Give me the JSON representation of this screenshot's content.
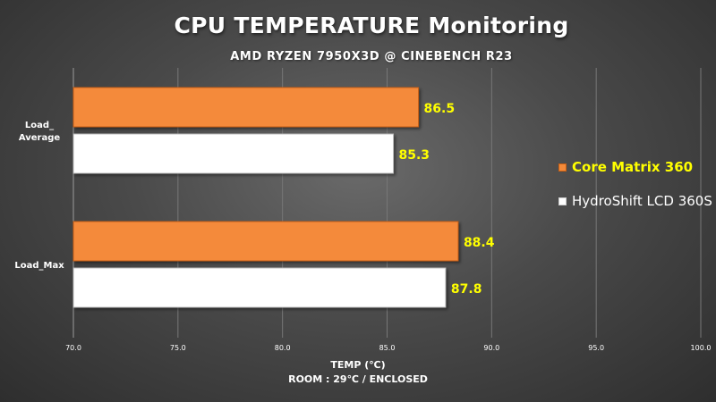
{
  "chart_data": {
    "type": "bar",
    "orientation": "horizontal",
    "title": "CPU TEMPERATURE Monitoring",
    "subtitle": "AMD RYZEN 7950X3D @ CINEBENCH R23",
    "xlabel": "TEMP (℃)",
    "note": "ROOM : 29℃ / ENCLOSED",
    "categories": [
      "Load_ Average",
      "Load_Max"
    ],
    "series": [
      {
        "name": "Core Matrix 360",
        "values": [
          86.5,
          88.4
        ],
        "color": "#f48a3a"
      },
      {
        "name": "HydroShift LCD 360S",
        "values": [
          85.3,
          87.8
        ],
        "color": "#ffffff"
      }
    ],
    "xlim": [
      70.0,
      100.0
    ],
    "xticks": [
      "70.0",
      "75.0",
      "80.0",
      "85.0",
      "90.0",
      "95.0",
      "100.0"
    ],
    "data_labels": true,
    "data_label_color": "#ffff00",
    "grid": "vertical",
    "legend_position": "right"
  }
}
